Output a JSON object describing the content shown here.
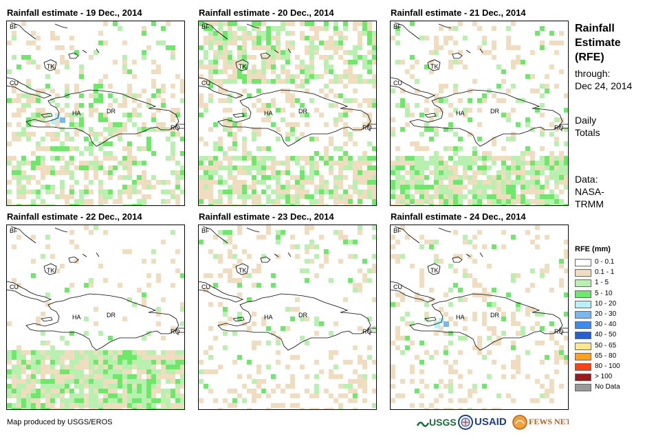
{
  "panels": [
    {
      "title": "Rainfall estimate - 19 Dec., 2014"
    },
    {
      "title": "Rainfall estimate - 20 Dec., 2014"
    },
    {
      "title": "Rainfall estimate - 21 Dec., 2014"
    },
    {
      "title": "Rainfall estimate - 22 Dec., 2014"
    },
    {
      "title": "Rainfall estimate - 23 Dec., 2014"
    },
    {
      "title": "Rainfall estimate - 24 Dec., 2014"
    }
  ],
  "map_labels": {
    "bf": "BF",
    "cu": "CU",
    "tk": "TK",
    "ha": "HA",
    "dr": "DR",
    "rq": "RQ"
  },
  "sidebar": {
    "title_line1": "Rainfall",
    "title_line2": "Estimate",
    "title_line3": "(RFE)",
    "through": "through:",
    "date": "Dec 24, 2014",
    "daily1": "Daily",
    "daily2": "Totals",
    "data1": "Data:",
    "data2": "NASA-",
    "data3": "TRMM"
  },
  "legend": {
    "title": "RFE (mm)",
    "items": [
      {
        "label": "0 - 0.1",
        "color": "#ffffff"
      },
      {
        "label": "0.1 - 1",
        "color": "#f0dcbe"
      },
      {
        "label": "1 - 5",
        "color": "#b8f0b0"
      },
      {
        "label": "5 - 10",
        "color": "#6ee86a"
      },
      {
        "label": "10 - 20",
        "color": "#b8f0f8"
      },
      {
        "label": "20 - 30",
        "color": "#78b8f0"
      },
      {
        "label": "30 - 40",
        "color": "#3c8cf0"
      },
      {
        "label": "40 - 50",
        "color": "#2060d8"
      },
      {
        "label": "50 - 65",
        "color": "#ffe88c"
      },
      {
        "label": "65 - 80",
        "color": "#ffa020"
      },
      {
        "label": "80 - 100",
        "color": "#ff4010"
      },
      {
        "label": "> 100",
        "color": "#a01818"
      },
      {
        "label": "No Data",
        "color": "#999999"
      }
    ]
  },
  "footer": {
    "produced_by": "Map produced by USGS/EROS"
  },
  "logos": {
    "usgs": "USGS",
    "usaid": "USAID",
    "fewsnet": "FEWS NET"
  }
}
